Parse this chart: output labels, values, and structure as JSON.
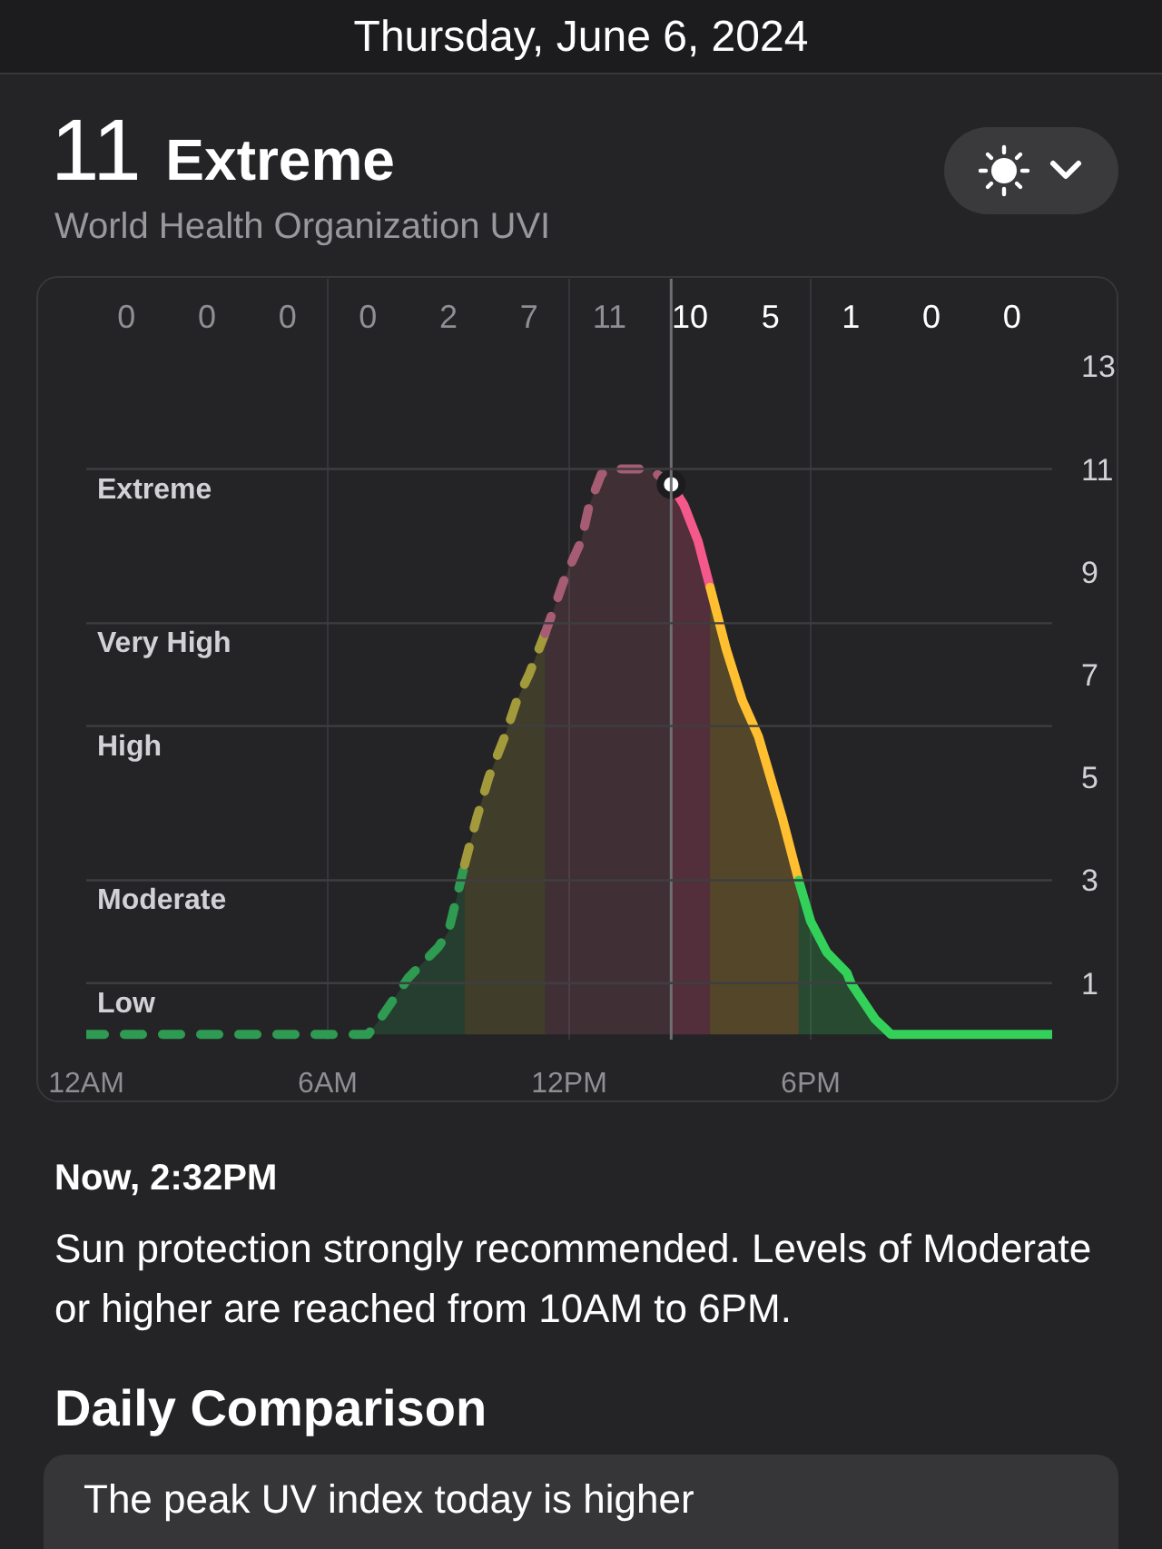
{
  "chart_data": {
    "type": "area",
    "title": "11 Extreme",
    "subtitle": "World Health Organization UVI",
    "annotations": [
      "Thursday, June 6, 2024",
      "0",
      "0",
      "0",
      "0",
      "2",
      "7",
      "11",
      "10",
      "5",
      "1",
      "0",
      "0",
      "Now, 2:32PM",
      "Sun protection strongly recommended. Levels of Moderate or higher are reached from 10AM to 6PM.",
      "Daily Comparison",
      "The peak UV index today is higher"
    ],
    "xlim": [
      "2024-06-06T00:00",
      "2024-06-07T00:00"
    ],
    "xticks": [
      {
        "value": "2024-06-06T00:00",
        "label": "12AM"
      },
      {
        "value": "2024-06-06T06:00",
        "label": "6AM"
      },
      {
        "value": "2024-06-06T12:00",
        "label": "12PM"
      },
      {
        "value": "2024-06-06T18:00",
        "label": "6PM"
      }
    ],
    "ylim": [
      -0.1,
      14.7
    ],
    "yticks": [
      1,
      3,
      5,
      7,
      9,
      11,
      13
    ],
    "grid": "x",
    "ref_lines": [
      {
        "axis": "x",
        "value": "2024-06-06T14:32",
        "color": "#6e6e73"
      },
      {
        "axis": "y",
        "value": 11,
        "label": "Extreme",
        "color": "#3e3e42"
      },
      {
        "axis": "y",
        "value": 8,
        "label": "Very High",
        "color": "#3e3e42"
      },
      {
        "axis": "y",
        "value": 6,
        "label": "High",
        "color": "#3e3e42"
      },
      {
        "axis": "y",
        "value": 3,
        "label": "Moderate",
        "color": "#3e3e42"
      },
      {
        "axis": "y",
        "value": 1,
        "label": "Low",
        "color": "#3e3e42"
      }
    ],
    "series": [
      {
        "color": "#2e9a52",
        "line_style": "dashed",
        "x": [
          "2024-06-06T00:00",
          "2024-06-06T01:00",
          "2024-06-06T03:00",
          "2024-06-06T05:00",
          "2024-06-06T07:00",
          "2024-06-06T07:18",
          "2024-06-06T08:00",
          "2024-06-06T08:45",
          "2024-06-06T09:00",
          "2024-06-06T09:24"
        ],
        "values": [
          0,
          0,
          0,
          0,
          0,
          0.3,
          1.1,
          1.7,
          2,
          3.3
        ]
      },
      {
        "color": "#a39a3c",
        "line_style": "dashed",
        "x": [
          "2024-06-06T09:24",
          "2024-06-06T09:42",
          "2024-06-06T10:00",
          "2024-06-06T10:24",
          "2024-06-06T10:42",
          "2024-06-06T11:00",
          "2024-06-06T11:24"
        ],
        "values": [
          3.3,
          4.2,
          5,
          5.8,
          6.5,
          7,
          7.8
        ]
      },
      {
        "color": "#a65c72",
        "line_style": "dashed",
        "x": [
          "2024-06-06T11:24",
          "2024-06-06T11:54",
          "2024-06-06T12:18",
          "2024-06-06T12:30",
          "2024-06-06T12:48",
          "2024-06-06T13:00",
          "2024-06-06T13:12",
          "2024-06-06T14:00",
          "2024-06-06T14:32"
        ],
        "values": [
          7.8,
          8.9,
          9.6,
          10.3,
          10.9,
          11,
          11,
          11,
          10.7
        ]
      },
      {
        "color": "#f5588a",
        "line_style": "solid",
        "x": [
          "2024-06-06T14:32",
          "2024-06-06T14:51",
          "2024-06-06T15:00",
          "2024-06-06T15:12",
          "2024-06-06T15:30"
        ],
        "values": [
          10.7,
          10.3,
          10,
          9.6,
          8.7
        ]
      },
      {
        "color": "#ffbf30",
        "line_style": "solid",
        "x": [
          "2024-06-06T15:30",
          "2024-06-06T15:54",
          "2024-06-06T16:18",
          "2024-06-06T16:42",
          "2024-06-06T17:00",
          "2024-06-06T17:18",
          "2024-06-06T17:42"
        ],
        "values": [
          8.7,
          7.5,
          6.5,
          5.8,
          5,
          4.2,
          3
        ]
      },
      {
        "color": "#34d15a",
        "line_style": "solid",
        "x": [
          "2024-06-06T17:42",
          "2024-06-06T18:00",
          "2024-06-06T18:24",
          "2024-06-06T18:54",
          "2024-06-06T19:00",
          "2024-06-06T19:36",
          "2024-06-06T20:00",
          "2024-06-06T21:00",
          "2024-06-06T23:00",
          "2024-06-07T00:00"
        ],
        "values": [
          3,
          2.2,
          1.6,
          1.2,
          1,
          0.3,
          0,
          0,
          0,
          0
        ]
      },
      {
        "type": "scatter",
        "color": "#ffffff",
        "marker": "circle",
        "x": [
          "2024-06-06T14:32"
        ],
        "values": [
          10.7
        ]
      }
    ]
  }
}
